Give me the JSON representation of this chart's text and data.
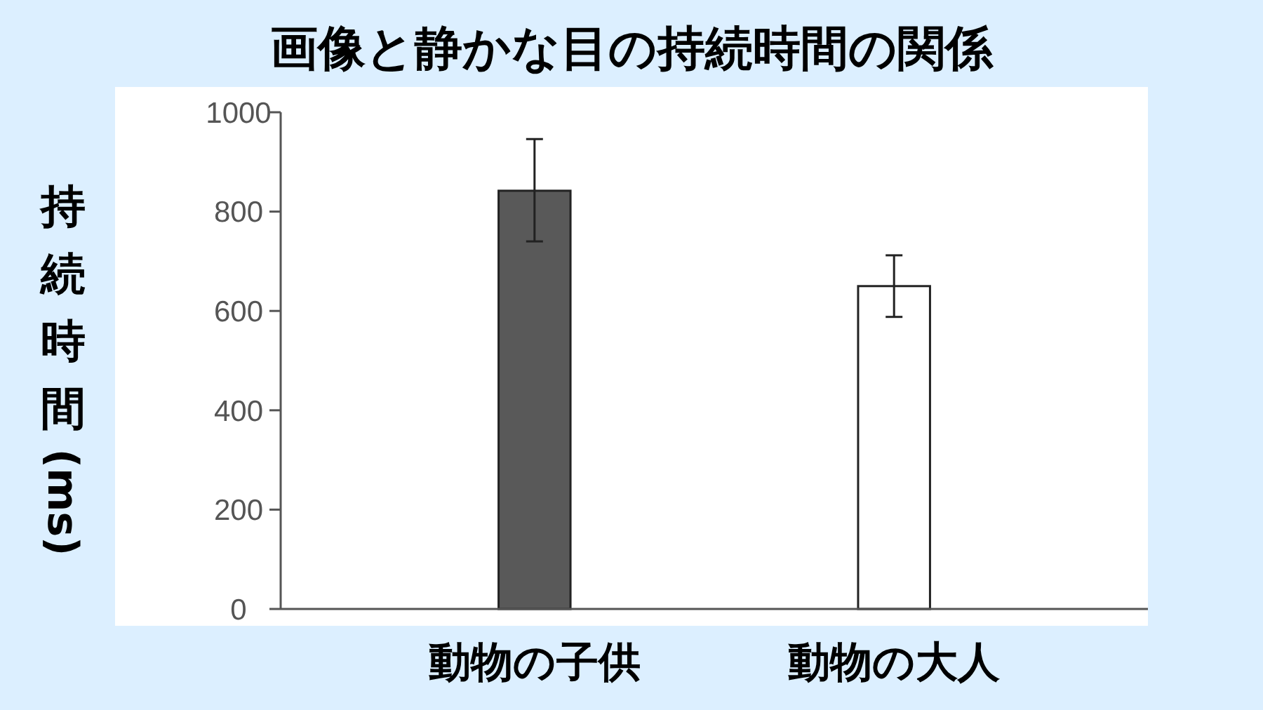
{
  "chart_data": {
    "type": "bar",
    "title": "画像と静かな目の持続時間の関係",
    "ylabel": "持続時間(ms)",
    "categories": [
      "動物の子供",
      "動物の大人"
    ],
    "values": [
      842,
      650
    ],
    "colors": [
      "#595959",
      "#ffffff"
    ],
    "errors": [
      [
        740,
        946
      ],
      [
        588,
        712
      ]
    ],
    "ylim": [
      0,
      1000
    ],
    "yticks": [
      0,
      200,
      400,
      600,
      800,
      1000
    ],
    "grid": false
  }
}
